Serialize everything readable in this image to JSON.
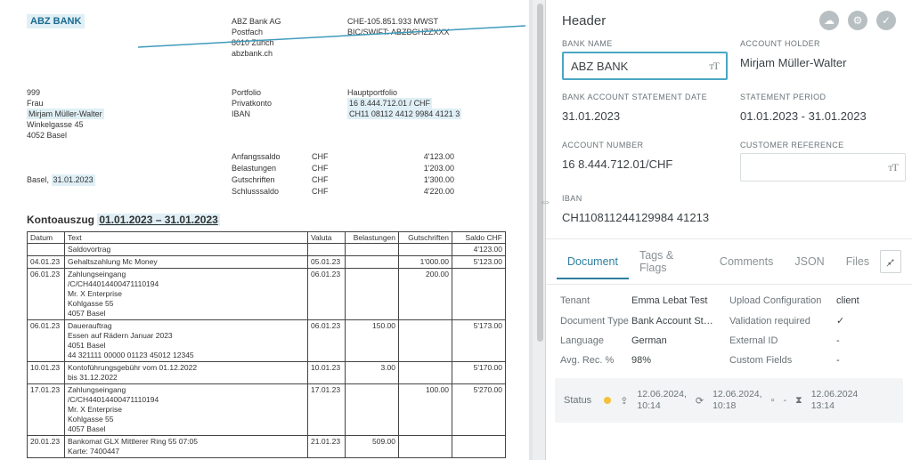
{
  "doc": {
    "bankName": "ABZ BANK",
    "bankBlock": [
      "ABZ Bank AG",
      "Postfach",
      "8010 Zürich",
      "abzbank.ch"
    ],
    "ids": [
      "CHE-105.851.933 MWST",
      "BIC/SWIFT: ABZBCHZZXXX"
    ],
    "addr": [
      "999",
      "Frau",
      "Mirjam Müller-Walter",
      "Winkelgasse 45",
      "4052 Basel"
    ],
    "portfolio": [
      "Portfolio",
      "Privatkonto",
      "IBAN"
    ],
    "portfolioVals": [
      "Hauptportfolio",
      "16 8.444.712.01 / CHF",
      "CH11 08112 4412 9984 4121 3"
    ],
    "printLoc": "Basel,",
    "printDate": "31.01.2023",
    "balLabels": [
      "Anfangssaldo",
      "Belastungen",
      "Gutschriften",
      "Schlusssaldo"
    ],
    "balCur": [
      "CHF",
      "CHF",
      "CHF",
      "CHF"
    ],
    "balVals": [
      "4'123.00",
      "1'203.00",
      "1'300.00",
      "4'220.00"
    ],
    "h3a": "Kontoauszug",
    "h3b": "01.01.2023 – 31.01.2023",
    "th": [
      "Datum",
      "Text",
      "Valuta",
      "Belastungen",
      "Gutschriften",
      "Saldo CHF"
    ],
    "rows": [
      {
        "d": "",
        "t": [
          "Saldovortrag"
        ],
        "v": "",
        "b": "",
        "g": "",
        "s": "4'123.00"
      },
      {
        "d": "04.01.23",
        "t": [
          "Gehaltszahlung Mc Money"
        ],
        "v": "05.01.23",
        "b": "",
        "g": "1'000.00",
        "s": "5'123.00"
      },
      {
        "d": "06.01.23",
        "t": [
          "Zahlungseingang",
          "/C/CH44014400471110194",
          "Mr. X Enterprise",
          "Kohlgasse 55",
          "4057 Basel"
        ],
        "v": "06.01.23",
        "b": "",
        "g": "200.00",
        "s": ""
      },
      {
        "d": "06.01.23",
        "t": [
          "Dauerauftrag",
          "Essen auf Rädern Januar 2023",
          "4051 Basel",
          "44 321111 00000 01123 45012 12345"
        ],
        "v": "06.01.23",
        "b": "150.00",
        "g": "",
        "s": "5'173.00"
      },
      {
        "d": "10.01.23",
        "t": [
          "Kontoführungsgebühr vom 01.12.2022",
          "bis 31.12.2022"
        ],
        "v": "10.01.23",
        "b": "3.00",
        "g": "",
        "s": "5'170.00"
      },
      {
        "d": "17.01.23",
        "t": [
          "Zahlungseingang",
          "/C/CH44014400471110194",
          "Mr. X Enterprise",
          "Kohlgasse 55",
          "4057 Basel"
        ],
        "v": "17.01.23",
        "b": "",
        "g": "100.00",
        "s": "5'270.00"
      },
      {
        "d": "20.01.23",
        "t": [
          "Bankomat GLX Mittlerer Ring 55 07:05",
          "Karte: 7400447"
        ],
        "v": "21.01.23",
        "b": "509.00",
        "g": "",
        "s": ""
      }
    ]
  },
  "panel": {
    "title": "Header",
    "fields": {
      "bankName": {
        "label": "BANK NAME",
        "value": "ABZ BANK"
      },
      "holder": {
        "label": "ACCOUNT HOLDER",
        "value": "Mirjam Müller-Walter"
      },
      "stmtDate": {
        "label": "BANK ACCOUNT STATEMENT DATE",
        "value": "31.01.2023"
      },
      "period": {
        "label": "STATEMENT PERIOD",
        "value": "01.01.2023 - 31.01.2023"
      },
      "acctNo": {
        "label": "ACCOUNT NUMBER",
        "value": "16 8.444.712.01/CHF"
      },
      "custRef": {
        "label": "CUSTOMER REFERENCE",
        "value": ""
      },
      "iban": {
        "label": "IBAN",
        "value": "CH110811244129984 41213"
      }
    },
    "tabs": [
      "Document",
      "Tags & Flags",
      "Comments",
      "JSON",
      "Files"
    ],
    "meta": {
      "tenantL": "Tenant",
      "tenantV": "Emma Lebat Test",
      "uplL": "Upload Configuration",
      "uplV": "client",
      "dtypeL": "Document Type",
      "dtypeV": "Bank Account St…",
      "valL": "Validation required",
      "langL": "Language",
      "langV": "German",
      "extL": "External ID",
      "extV": "-",
      "recL": "Avg. Rec. %",
      "recV": "98%",
      "cfL": "Custom Fields",
      "cfV": "-"
    },
    "status": {
      "label": "Status",
      "t1a": "12.06.2024,",
      "t1b": "10:14",
      "t2a": "12.06.2024,",
      "t2b": "10:18",
      "t3a": "12.06.2024",
      "t3b": "13:14"
    }
  }
}
